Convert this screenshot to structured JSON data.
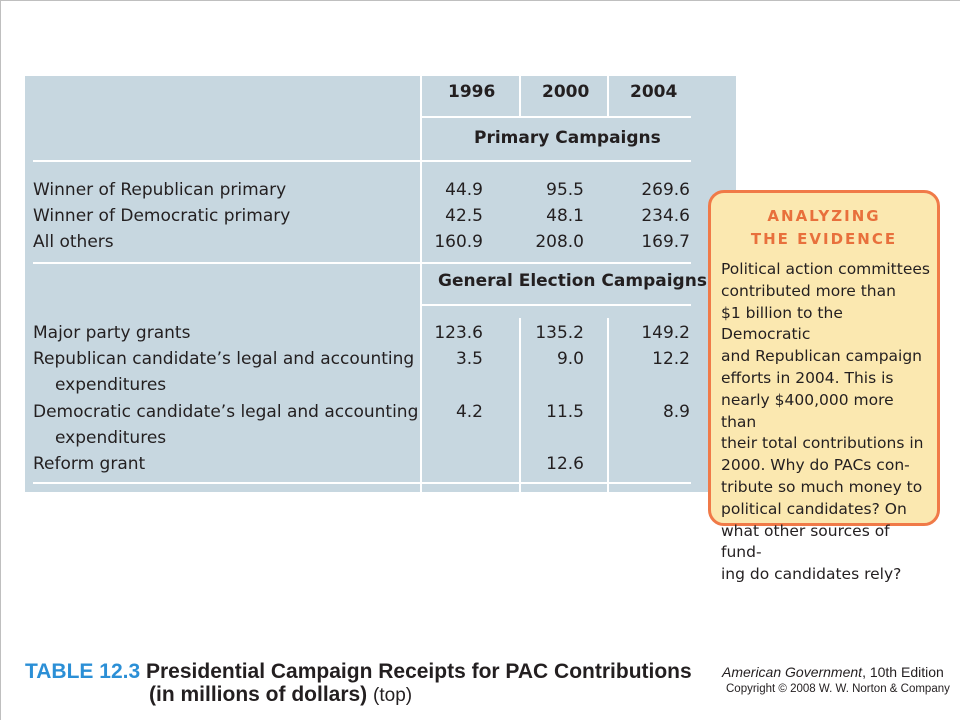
{
  "table": {
    "years": [
      "1996",
      "2000",
      "2004"
    ],
    "sections": [
      {
        "heading": "Primary Campaigns",
        "rows": [
          {
            "label": "Winner of Republican primary",
            "values": [
              "44.9",
              "95.5",
              "269.6"
            ]
          },
          {
            "label": "Winner of Democratic primary",
            "values": [
              "42.5",
              "48.1",
              "234.6"
            ]
          },
          {
            "label": "All others",
            "values": [
              "160.9",
              "208.0",
              "169.7"
            ]
          }
        ]
      },
      {
        "heading": "General Election Campaigns",
        "rows": [
          {
            "label": "Major party grants",
            "values": [
              "123.6",
              "135.2",
              "149.2"
            ]
          },
          {
            "label": "Republican candidate’s legal and accounting",
            "label2": "expenditures",
            "values": [
              "3.5",
              "9.0",
              "12.2"
            ]
          },
          {
            "label": "Democratic candidate’s legal and accounting",
            "label2": "expenditures",
            "values": [
              "4.2",
              "11.5",
              "8.9"
            ]
          },
          {
            "label": "Reform grant",
            "values": [
              "",
              "12.6",
              ""
            ]
          }
        ]
      }
    ]
  },
  "callout": {
    "title_line1": "ANALYZING",
    "title_line2": "THE EVIDENCE",
    "body": "Political action committees\ncontributed more than\n$1 billion to the Democratic\nand Republican campaign\nefforts in 2004. This is\nnearly $400,000 more than\ntheir total contributions in\n2000. Why do PACs con-\ntribute so much money to\npolitical candidates? On\nwhat other sources of fund-\ning do candidates rely?"
  },
  "caption": {
    "label": "TABLE 12.3",
    "title_line1": "Presidential Campaign Receipts for PAC Contributions",
    "title_line2": "(in millions of dollars)",
    "suffix": "(top)"
  },
  "credit": {
    "book": "American Government",
    "edition": ", 10th Edition",
    "copyright": "Copyright © 2008 W. W. Norton & Company"
  },
  "colors": {
    "panel_bg": "#c7d7e0",
    "callout_border": "#f07a48",
    "callout_bg": "#fbe8b0",
    "callout_title": "#e8703c",
    "caption_label": "#2b8fd6"
  }
}
